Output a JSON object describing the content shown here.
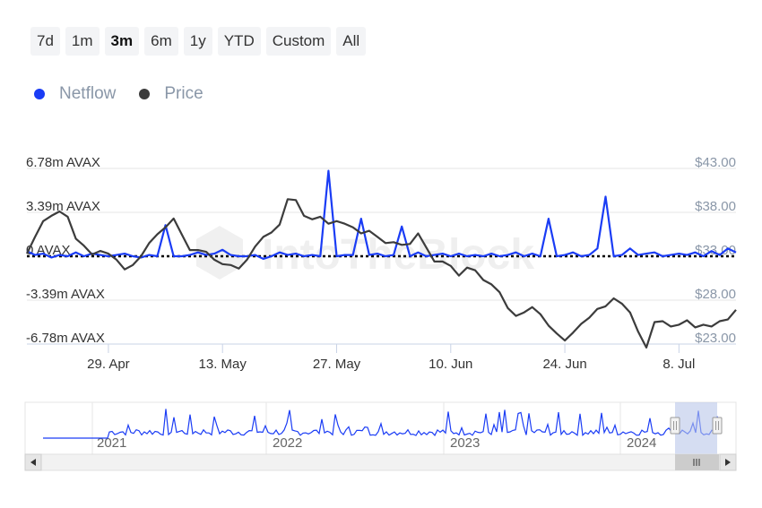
{
  "range_selector": {
    "buttons": [
      "7d",
      "1m",
      "3m",
      "6m",
      "1y",
      "YTD",
      "Custom",
      "All"
    ],
    "active": "3m"
  },
  "legend": {
    "items": [
      {
        "label": "Netflow",
        "color": "#1a3cf5"
      },
      {
        "label": "Price",
        "color": "#3c3c3c"
      }
    ]
  },
  "chart_data": {
    "type": "line",
    "watermark": "IntoTheBlock",
    "x_ticks": [
      "29. Apr",
      "13. May",
      "27. May",
      "10. Jun",
      "24. Jun",
      "8. Jul"
    ],
    "x_range": [
      "2024-04-19",
      "2024-07-15"
    ],
    "left_axis": {
      "ticks": [
        "6.78m AVAX",
        "3.39m AVAX",
        "0 AVAX",
        "-3.39m AVAX",
        "-6.78m AVAX"
      ],
      "range": [
        -6.78,
        6.78
      ],
      "unit": "m AVAX"
    },
    "right_axis": {
      "ticks": [
        "$43.00",
        "$38.00",
        "$33.00",
        "$28.00",
        "$23.00"
      ],
      "range": [
        23,
        43
      ],
      "unit": "USD"
    },
    "zero_line": "dotted",
    "series": [
      {
        "name": "Netflow",
        "axis": "left",
        "color": "#1a3cf5",
        "points": [
          [
            "2024-04-19",
            0.4
          ],
          [
            "2024-04-20",
            0.1
          ],
          [
            "2024-04-21",
            0.2
          ],
          [
            "2024-04-22",
            -0.1
          ],
          [
            "2024-04-23",
            0.1
          ],
          [
            "2024-04-24",
            0.0
          ],
          [
            "2024-04-25",
            0.3
          ],
          [
            "2024-04-26",
            0.0
          ],
          [
            "2024-04-27",
            0.2
          ],
          [
            "2024-04-28",
            0.1
          ],
          [
            "2024-04-29",
            0.0
          ],
          [
            "2024-04-30",
            0.1
          ],
          [
            "2024-05-01",
            0.2
          ],
          [
            "2024-05-02",
            0.0
          ],
          [
            "2024-05-03",
            -0.1
          ],
          [
            "2024-05-04",
            0.1
          ],
          [
            "2024-05-05",
            0.0
          ],
          [
            "2024-05-06",
            2.4
          ],
          [
            "2024-05-07",
            0.0
          ],
          [
            "2024-05-08",
            0.0
          ],
          [
            "2024-05-09",
            0.1
          ],
          [
            "2024-05-10",
            0.3
          ],
          [
            "2024-05-11",
            0.1
          ],
          [
            "2024-05-12",
            0.2
          ],
          [
            "2024-05-13",
            0.5
          ],
          [
            "2024-05-14",
            0.1
          ],
          [
            "2024-05-15",
            0.0
          ],
          [
            "2024-05-16",
            0.0
          ],
          [
            "2024-05-17",
            0.1
          ],
          [
            "2024-05-18",
            -0.2
          ],
          [
            "2024-05-19",
            0.0
          ],
          [
            "2024-05-20",
            0.3
          ],
          [
            "2024-05-21",
            0.1
          ],
          [
            "2024-05-22",
            0.2
          ],
          [
            "2024-05-23",
            0.0
          ],
          [
            "2024-05-24",
            0.1
          ],
          [
            "2024-05-25",
            0.0
          ],
          [
            "2024-05-26",
            6.6
          ],
          [
            "2024-05-27",
            0.0
          ],
          [
            "2024-05-28",
            0.1
          ],
          [
            "2024-05-29",
            0.1
          ],
          [
            "2024-05-30",
            2.9
          ],
          [
            "2024-05-31",
            0.1
          ],
          [
            "2024-06-01",
            0.2
          ],
          [
            "2024-06-02",
            0.0
          ],
          [
            "2024-06-03",
            0.1
          ],
          [
            "2024-06-04",
            2.3
          ],
          [
            "2024-06-05",
            0.0
          ],
          [
            "2024-06-06",
            0.3
          ],
          [
            "2024-06-07",
            0.0
          ],
          [
            "2024-06-08",
            0.1
          ],
          [
            "2024-06-09",
            0.2
          ],
          [
            "2024-06-10",
            0.0
          ],
          [
            "2024-06-11",
            0.2
          ],
          [
            "2024-06-12",
            0.0
          ],
          [
            "2024-06-13",
            0.1
          ],
          [
            "2024-06-14",
            0.0
          ],
          [
            "2024-06-15",
            0.2
          ],
          [
            "2024-06-16",
            0.0
          ],
          [
            "2024-06-17",
            0.1
          ],
          [
            "2024-06-18",
            0.3
          ],
          [
            "2024-06-19",
            0.0
          ],
          [
            "2024-06-20",
            0.2
          ],
          [
            "2024-06-21",
            0.0
          ],
          [
            "2024-06-22",
            2.9
          ],
          [
            "2024-06-23",
            0.0
          ],
          [
            "2024-06-24",
            0.1
          ],
          [
            "2024-06-25",
            0.3
          ],
          [
            "2024-06-26",
            0.0
          ],
          [
            "2024-06-27",
            0.1
          ],
          [
            "2024-06-28",
            0.6
          ],
          [
            "2024-06-29",
            4.6
          ],
          [
            "2024-06-30",
            0.0
          ],
          [
            "2024-07-01",
            0.1
          ],
          [
            "2024-07-02",
            0.6
          ],
          [
            "2024-07-03",
            0.1
          ],
          [
            "2024-07-04",
            0.2
          ],
          [
            "2024-07-05",
            0.3
          ],
          [
            "2024-07-06",
            0.0
          ],
          [
            "2024-07-07",
            0.1
          ],
          [
            "2024-07-08",
            0.2
          ],
          [
            "2024-07-09",
            0.1
          ],
          [
            "2024-07-10",
            0.3
          ],
          [
            "2024-07-11",
            0.0
          ],
          [
            "2024-07-12",
            0.4
          ],
          [
            "2024-07-13",
            0.1
          ],
          [
            "2024-07-14",
            0.6
          ],
          [
            "2024-07-15",
            0.3
          ]
        ]
      },
      {
        "name": "Price",
        "axis": "right",
        "color": "#3c3c3c",
        "points": [
          [
            "2024-04-19",
            33.3
          ],
          [
            "2024-04-20",
            35.2
          ],
          [
            "2024-04-21",
            37.0
          ],
          [
            "2024-04-22",
            37.6
          ],
          [
            "2024-04-23",
            38.1
          ],
          [
            "2024-04-24",
            37.5
          ],
          [
            "2024-04-25",
            35.0
          ],
          [
            "2024-04-26",
            34.2
          ],
          [
            "2024-04-27",
            33.2
          ],
          [
            "2024-04-28",
            33.6
          ],
          [
            "2024-04-29",
            33.3
          ],
          [
            "2024-04-30",
            32.6
          ],
          [
            "2024-05-01",
            31.5
          ],
          [
            "2024-05-02",
            32.0
          ],
          [
            "2024-05-03",
            33.0
          ],
          [
            "2024-05-04",
            34.5
          ],
          [
            "2024-05-05",
            35.5
          ],
          [
            "2024-05-06",
            36.3
          ],
          [
            "2024-05-07",
            37.3
          ],
          [
            "2024-05-08",
            35.5
          ],
          [
            "2024-05-09",
            33.7
          ],
          [
            "2024-05-10",
            33.7
          ],
          [
            "2024-05-11",
            33.5
          ],
          [
            "2024-05-12",
            32.6
          ],
          [
            "2024-05-13",
            32.1
          ],
          [
            "2024-05-14",
            32.0
          ],
          [
            "2024-05-15",
            31.6
          ],
          [
            "2024-05-16",
            32.6
          ],
          [
            "2024-05-17",
            34.1
          ],
          [
            "2024-05-18",
            35.2
          ],
          [
            "2024-05-19",
            35.7
          ],
          [
            "2024-05-20",
            36.6
          ],
          [
            "2024-05-21",
            39.5
          ],
          [
            "2024-05-22",
            39.4
          ],
          [
            "2024-05-23",
            37.6
          ],
          [
            "2024-05-24",
            37.2
          ],
          [
            "2024-05-25",
            37.5
          ],
          [
            "2024-05-26",
            36.7
          ],
          [
            "2024-05-27",
            37.0
          ],
          [
            "2024-05-28",
            36.7
          ],
          [
            "2024-05-29",
            36.3
          ],
          [
            "2024-05-30",
            35.6
          ],
          [
            "2024-05-31",
            35.9
          ],
          [
            "2024-06-01",
            35.2
          ],
          [
            "2024-06-02",
            34.5
          ],
          [
            "2024-06-03",
            34.6
          ],
          [
            "2024-06-04",
            34.3
          ],
          [
            "2024-06-05",
            34.4
          ],
          [
            "2024-06-06",
            35.6
          ],
          [
            "2024-06-07",
            34.0
          ],
          [
            "2024-06-08",
            32.4
          ],
          [
            "2024-06-09",
            32.4
          ],
          [
            "2024-06-10",
            31.9
          ],
          [
            "2024-06-11",
            30.8
          ],
          [
            "2024-06-12",
            31.7
          ],
          [
            "2024-06-13",
            31.4
          ],
          [
            "2024-06-14",
            30.3
          ],
          [
            "2024-06-15",
            29.8
          ],
          [
            "2024-06-16",
            28.9
          ],
          [
            "2024-06-17",
            27.1
          ],
          [
            "2024-06-18",
            26.2
          ],
          [
            "2024-06-19",
            26.6
          ],
          [
            "2024-06-20",
            27.2
          ],
          [
            "2024-06-21",
            26.4
          ],
          [
            "2024-06-22",
            25.1
          ],
          [
            "2024-06-23",
            24.2
          ],
          [
            "2024-06-24",
            23.4
          ],
          [
            "2024-06-25",
            24.3
          ],
          [
            "2024-06-26",
            25.3
          ],
          [
            "2024-06-27",
            26.0
          ],
          [
            "2024-06-28",
            27.0
          ],
          [
            "2024-06-29",
            27.3
          ],
          [
            "2024-06-30",
            28.2
          ],
          [
            "2024-07-01",
            27.6
          ],
          [
            "2024-07-02",
            26.6
          ],
          [
            "2024-07-03",
            24.4
          ],
          [
            "2024-07-04",
            22.6
          ],
          [
            "2024-07-05",
            25.5
          ],
          [
            "2024-07-06",
            25.6
          ],
          [
            "2024-07-07",
            25.0
          ],
          [
            "2024-07-08",
            25.2
          ],
          [
            "2024-07-09",
            25.7
          ],
          [
            "2024-07-10",
            24.9
          ],
          [
            "2024-07-11",
            25.2
          ],
          [
            "2024-07-12",
            25.0
          ],
          [
            "2024-07-13",
            25.6
          ],
          [
            "2024-07-14",
            25.8
          ],
          [
            "2024-07-15",
            26.9
          ]
        ]
      }
    ],
    "navigator": {
      "labels": [
        "2021",
        "2022",
        "2023",
        "2024"
      ],
      "series": "Netflow",
      "selected_window": "last 3 months"
    }
  }
}
